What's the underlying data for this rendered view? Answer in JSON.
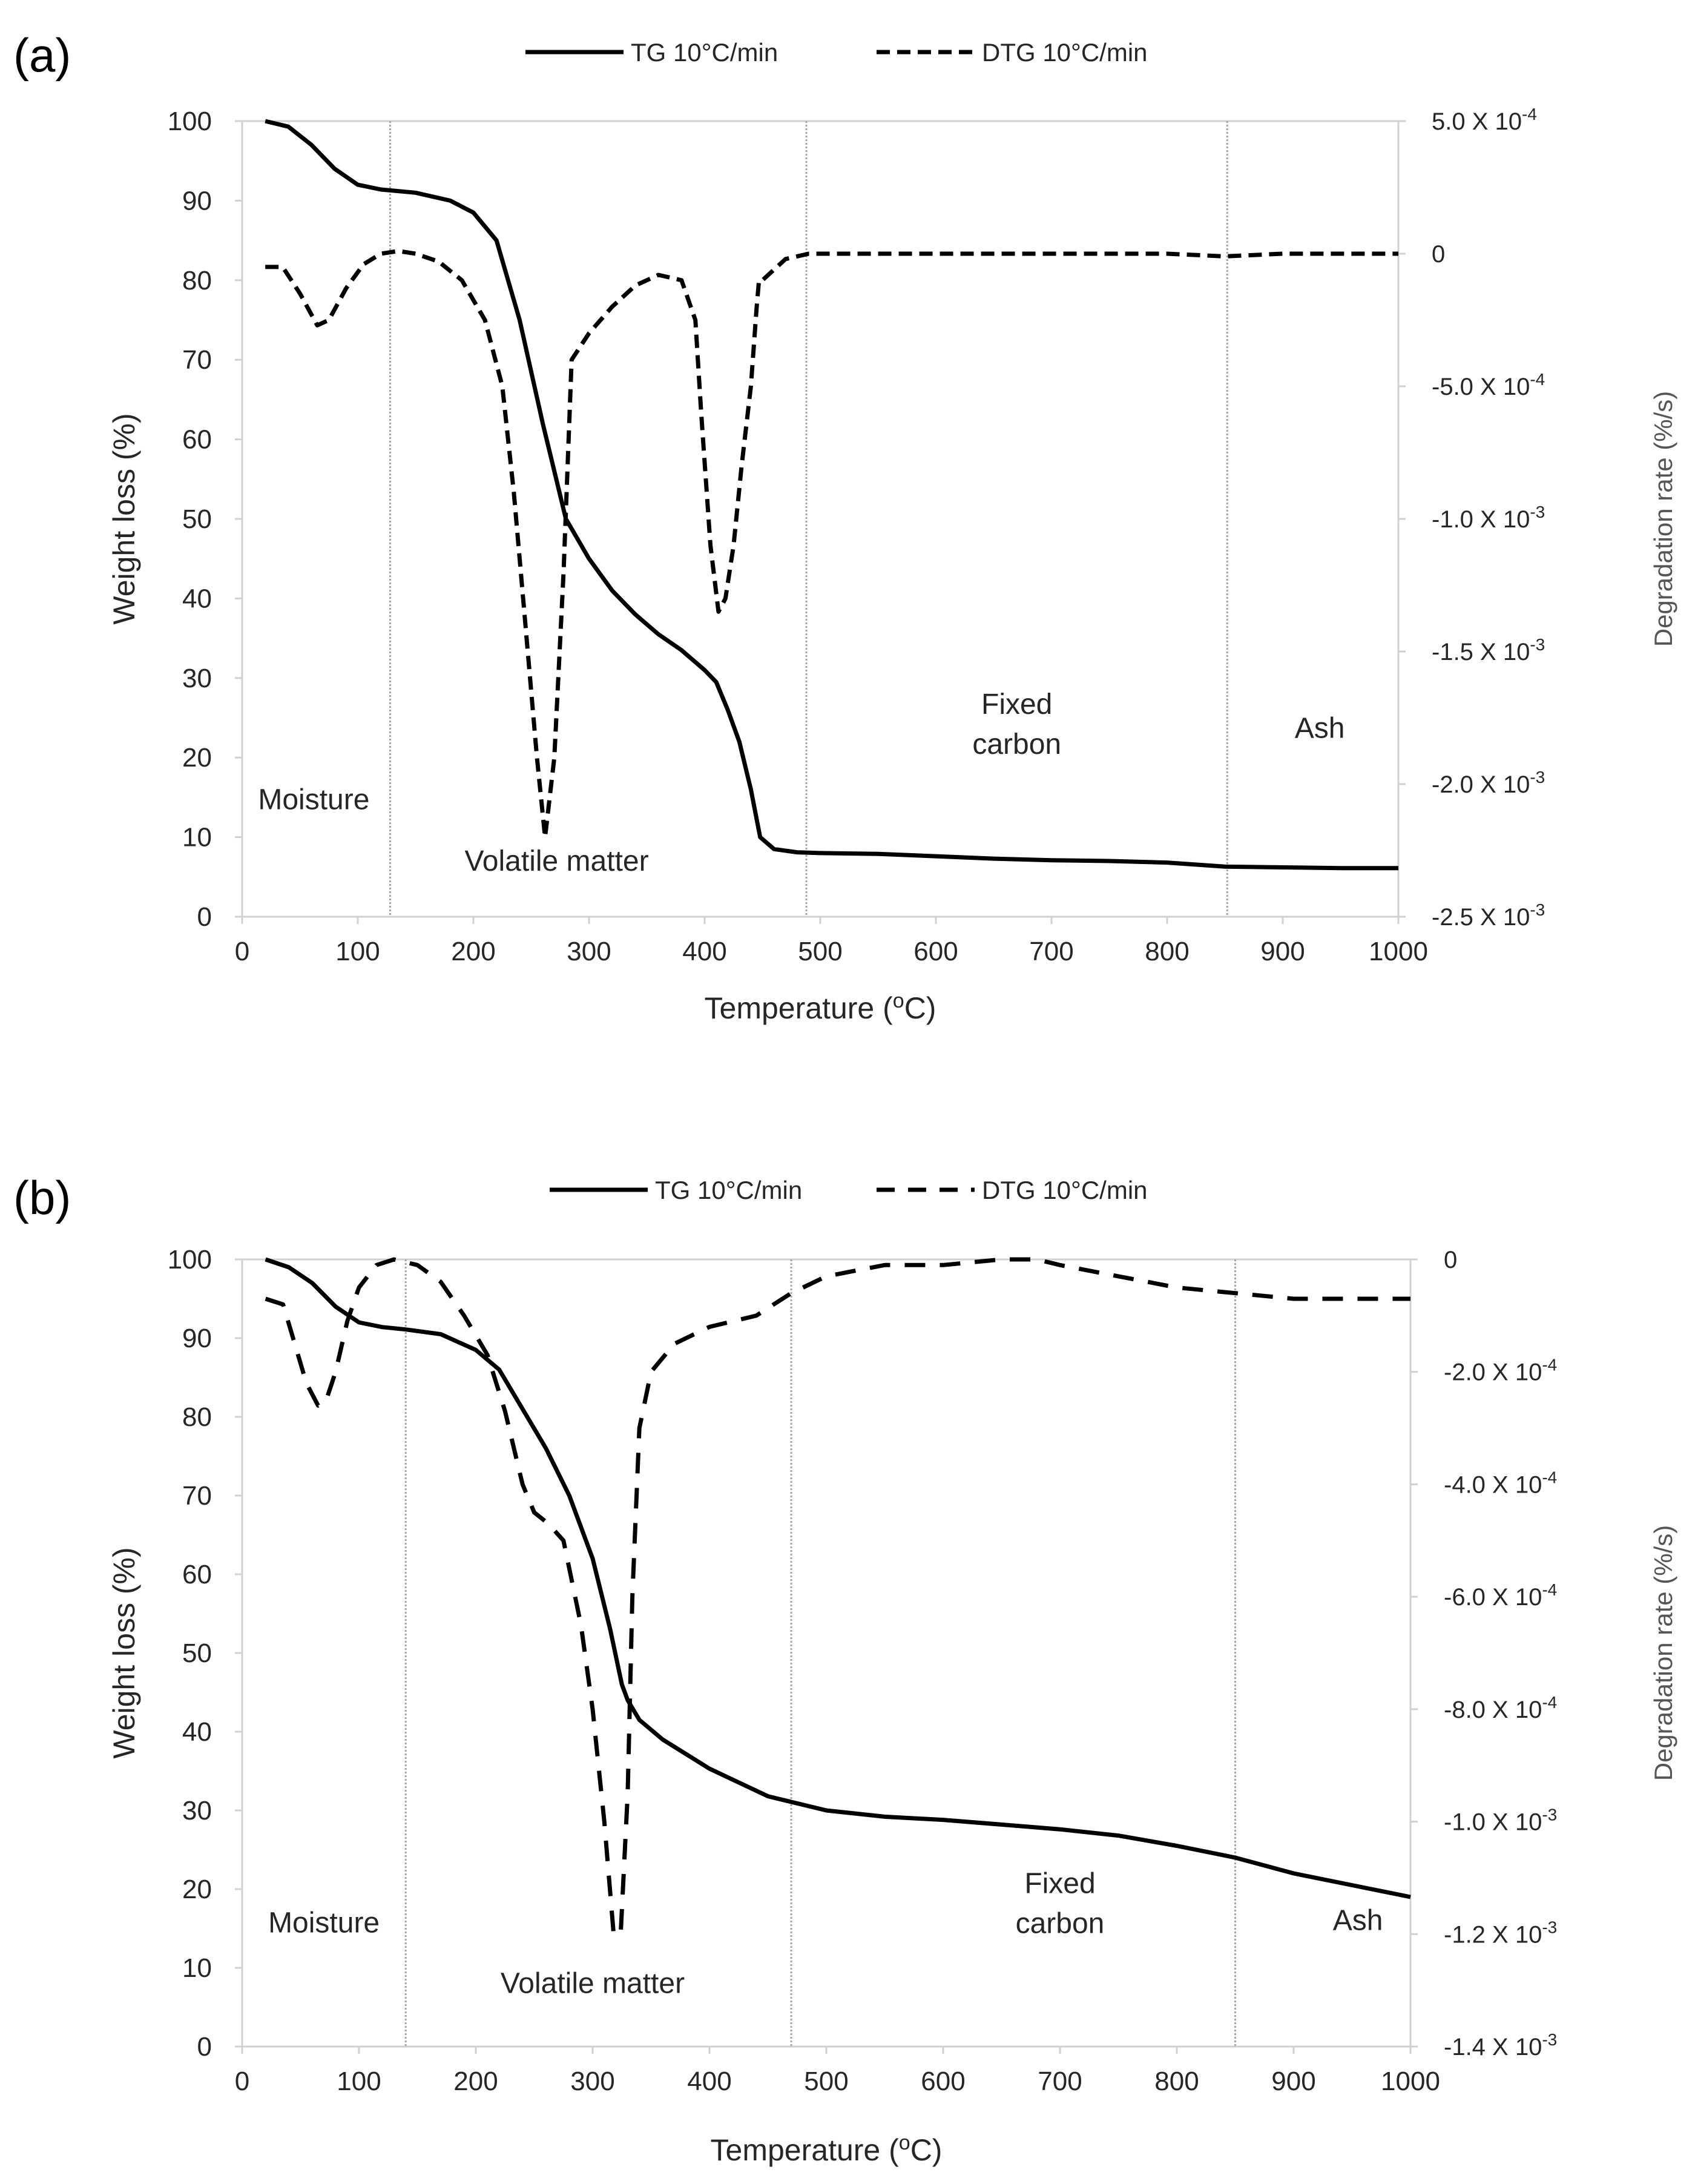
{
  "chart_data": [
    {
      "type": "line",
      "panel_label": "(a)",
      "xlabel_text": "Temperature (",
      "xlabel_sup": "o",
      "xlabel_tail": "C)",
      "ylabel": "Weight loss (%)",
      "y2label": "Degradation rate (%/s)",
      "xlim": [
        0,
        1000
      ],
      "ylim": [
        0,
        100
      ],
      "y2lim": [
        -0.0025,
        0.0005
      ],
      "x_ticks": [
        "0",
        "100",
        "200",
        "300",
        "400",
        "500",
        "600",
        "700",
        "800",
        "900",
        "1000"
      ],
      "y_ticks": [
        "0",
        "10",
        "20",
        "30",
        "40",
        "50",
        "60",
        "70",
        "80",
        "90",
        "100"
      ],
      "y2_ticks": [
        {
          "v": 0.0005,
          "base": "5.0 X 10",
          "exp": "-4"
        },
        {
          "v": 0,
          "base": "0",
          "exp": ""
        },
        {
          "v": -0.0005,
          "base": "-5.0 X 10",
          "exp": "-4"
        },
        {
          "v": -0.001,
          "base": "-1.0 X 10",
          "exp": "-3"
        },
        {
          "v": -0.0015,
          "base": "-1.5 X 10",
          "exp": "-3"
        },
        {
          "v": -0.002,
          "base": "-2.0 X 10",
          "exp": "-3"
        },
        {
          "v": -0.0025,
          "base": "-2.5 X 10",
          "exp": "-3"
        }
      ],
      "legend": [
        "TG 10°C/min",
        "DTG 10°C/min"
      ],
      "stage_boundaries": [
        128,
        488,
        852
      ],
      "annotations": [
        {
          "lines": [
            "Moisture"
          ],
          "x": 62,
          "y": 13.5,
          "anchor": "middle"
        },
        {
          "lines": [
            "Volatile matter"
          ],
          "x": 272,
          "y": 5.8,
          "anchor": "middle"
        },
        {
          "lines": [
            "Fixed",
            "carbon"
          ],
          "x": 670,
          "y": 25.5,
          "anchor": "middle"
        },
        {
          "lines": [
            "Ash"
          ],
          "x": 932,
          "y": 22.5,
          "anchor": "middle"
        }
      ],
      "series": [
        {
          "name": "TG 10°C/min",
          "axis": "left",
          "style": "solid",
          "x": [
            20,
            40,
            60,
            80,
            100,
            120,
            150,
            180,
            200,
            220,
            240,
            260,
            280,
            300,
            320,
            340,
            360,
            380,
            400,
            410,
            420,
            430,
            440,
            448,
            460,
            480,
            500,
            550,
            600,
            650,
            700,
            750,
            800,
            850,
            900,
            950,
            1000
          ],
          "y": [
            100,
            99.3,
            97,
            94,
            92,
            91.4,
            91,
            90,
            88.5,
            85,
            75,
            62,
            50,
            45,
            41,
            38,
            35.5,
            33.5,
            31,
            29.5,
            26,
            22,
            16,
            10,
            8.5,
            8.1,
            8,
            7.9,
            7.6,
            7.3,
            7.1,
            7,
            6.8,
            6.3,
            6.2,
            6.1,
            6.1
          ]
        },
        {
          "name": "DTG 10°C/min",
          "axis": "right",
          "style": "dashed",
          "x": [
            20,
            35,
            50,
            65,
            75,
            90,
            105,
            120,
            135,
            150,
            170,
            190,
            210,
            225,
            235,
            245,
            255,
            262,
            270,
            278,
            285,
            300,
            320,
            340,
            360,
            380,
            392,
            397,
            405,
            412,
            418,
            425,
            432,
            440,
            445,
            447,
            450,
            470,
            490,
            550,
            600,
            650,
            700,
            750,
            800,
            850,
            900,
            950,
            1000
          ],
          "y": [
            -5e-05,
            -5e-05,
            -0.00015,
            -0.00027,
            -0.00025,
            -0.00013,
            -4e-05,
            0,
            1e-05,
            0,
            -3e-05,
            -0.0001,
            -0.00025,
            -0.0005,
            -0.0009,
            -0.0014,
            -0.0019,
            -0.0022,
            -0.0019,
            -0.0012,
            -0.0004,
            -0.0003,
            -0.0002,
            -0.00012,
            -8e-05,
            -0.0001,
            -0.00025,
            -0.0006,
            -0.0011,
            -0.00135,
            -0.0013,
            -0.0011,
            -0.0008,
            -0.0005,
            -0.0002,
            -0.0001,
            -0.0001,
            -2e-05,
            0,
            0,
            0,
            0,
            0,
            0,
            0,
            -1e-05,
            0,
            0,
            0
          ]
        }
      ]
    },
    {
      "type": "line",
      "panel_label": "(b)",
      "xlabel_text": "Temperature (",
      "xlabel_sup": "o",
      "xlabel_tail": "C)",
      "ylabel": "Weight loss (%)",
      "y2label": "Degradation rate (%/s)",
      "xlim": [
        0,
        1000
      ],
      "ylim": [
        0,
        100
      ],
      "y2lim": [
        -0.0014,
        0
      ],
      "x_ticks": [
        "0",
        "100",
        "200",
        "300",
        "400",
        "500",
        "600",
        "700",
        "800",
        "900",
        "1000"
      ],
      "y_ticks": [
        "0",
        "10",
        "20",
        "30",
        "40",
        "50",
        "60",
        "70",
        "80",
        "90",
        "100"
      ],
      "y2_ticks": [
        {
          "v": 0,
          "base": "0",
          "exp": ""
        },
        {
          "v": -0.0002,
          "base": "-2.0 X 10",
          "exp": "-4"
        },
        {
          "v": -0.0004,
          "base": "-4.0 X 10",
          "exp": "-4"
        },
        {
          "v": -0.0006,
          "base": "-6.0 X 10",
          "exp": "-4"
        },
        {
          "v": -0.0008,
          "base": "-8.0 X 10",
          "exp": "-4"
        },
        {
          "v": -0.001,
          "base": "-1.0 X 10",
          "exp": "-3"
        },
        {
          "v": -0.0012,
          "base": "-1.2 X 10",
          "exp": "-3"
        },
        {
          "v": -0.0014,
          "base": "-1.4 X 10",
          "exp": "-3"
        }
      ],
      "legend": [
        "TG 10°C/min",
        "DTG 10°C/min"
      ],
      "stage_boundaries": [
        140,
        470,
        850
      ],
      "annotations": [
        {
          "lines": [
            "Moisture"
          ],
          "x": 70,
          "y": 14.5,
          "anchor": "middle"
        },
        {
          "lines": [
            "Volatile matter"
          ],
          "x": 300,
          "y": 6.8,
          "anchor": "middle"
        },
        {
          "lines": [
            "Fixed",
            "carbon"
          ],
          "x": 700,
          "y": 19.5,
          "anchor": "middle"
        },
        {
          "lines": [
            "Ash"
          ],
          "x": 955,
          "y": 14.8,
          "anchor": "middle"
        }
      ],
      "series": [
        {
          "name": "TG 10°C/min",
          "axis": "left",
          "style": "solid",
          "x": [
            20,
            40,
            60,
            80,
            100,
            120,
            140,
            170,
            200,
            220,
            240,
            260,
            280,
            300,
            315,
            325,
            330,
            340,
            360,
            400,
            450,
            500,
            550,
            600,
            650,
            700,
            750,
            800,
            850,
            900,
            950,
            1000
          ],
          "y": [
            100,
            99,
            97,
            94,
            92,
            91.4,
            91.1,
            90.5,
            88.5,
            86,
            81,
            76,
            70,
            62,
            53,
            46,
            44,
            41.5,
            39,
            35.3,
            31.8,
            30,
            29.2,
            28.8,
            28.2,
            27.6,
            26.8,
            25.5,
            24,
            22,
            20.5,
            19
          ]
        },
        {
          "name": "DTG 10°C/min",
          "axis": "right",
          "style": "dashed",
          "x": [
            20,
            35,
            45,
            55,
            65,
            72,
            80,
            90,
            100,
            115,
            130,
            150,
            170,
            190,
            210,
            225,
            240,
            250,
            262,
            275,
            290,
            300,
            310,
            318,
            324,
            330,
            334,
            340,
            350,
            370,
            400,
            440,
            470,
            500,
            550,
            600,
            650,
            680,
            700,
            750,
            800,
            850,
            900,
            950,
            1000
          ],
          "y": [
            -7e-05,
            -8e-05,
            -0.00015,
            -0.00022,
            -0.00026,
            -0.00025,
            -0.0002,
            -0.00011,
            -5e-05,
            -1e-05,
            0,
            -1e-05,
            -4e-05,
            -0.0001,
            -0.00017,
            -0.00027,
            -0.0004,
            -0.00045,
            -0.00047,
            -0.0005,
            -0.00065,
            -0.0008,
            -0.001,
            -0.0012,
            -0.0012,
            -0.00095,
            -0.0006,
            -0.0003,
            -0.0002,
            -0.00015,
            -0.00012,
            -0.0001,
            -6e-05,
            -3e-05,
            -1e-05,
            -1e-05,
            0,
            0,
            -1e-05,
            -3e-05,
            -5e-05,
            -6e-05,
            -7e-05,
            -7e-05,
            -7e-05
          ]
        }
      ]
    }
  ]
}
